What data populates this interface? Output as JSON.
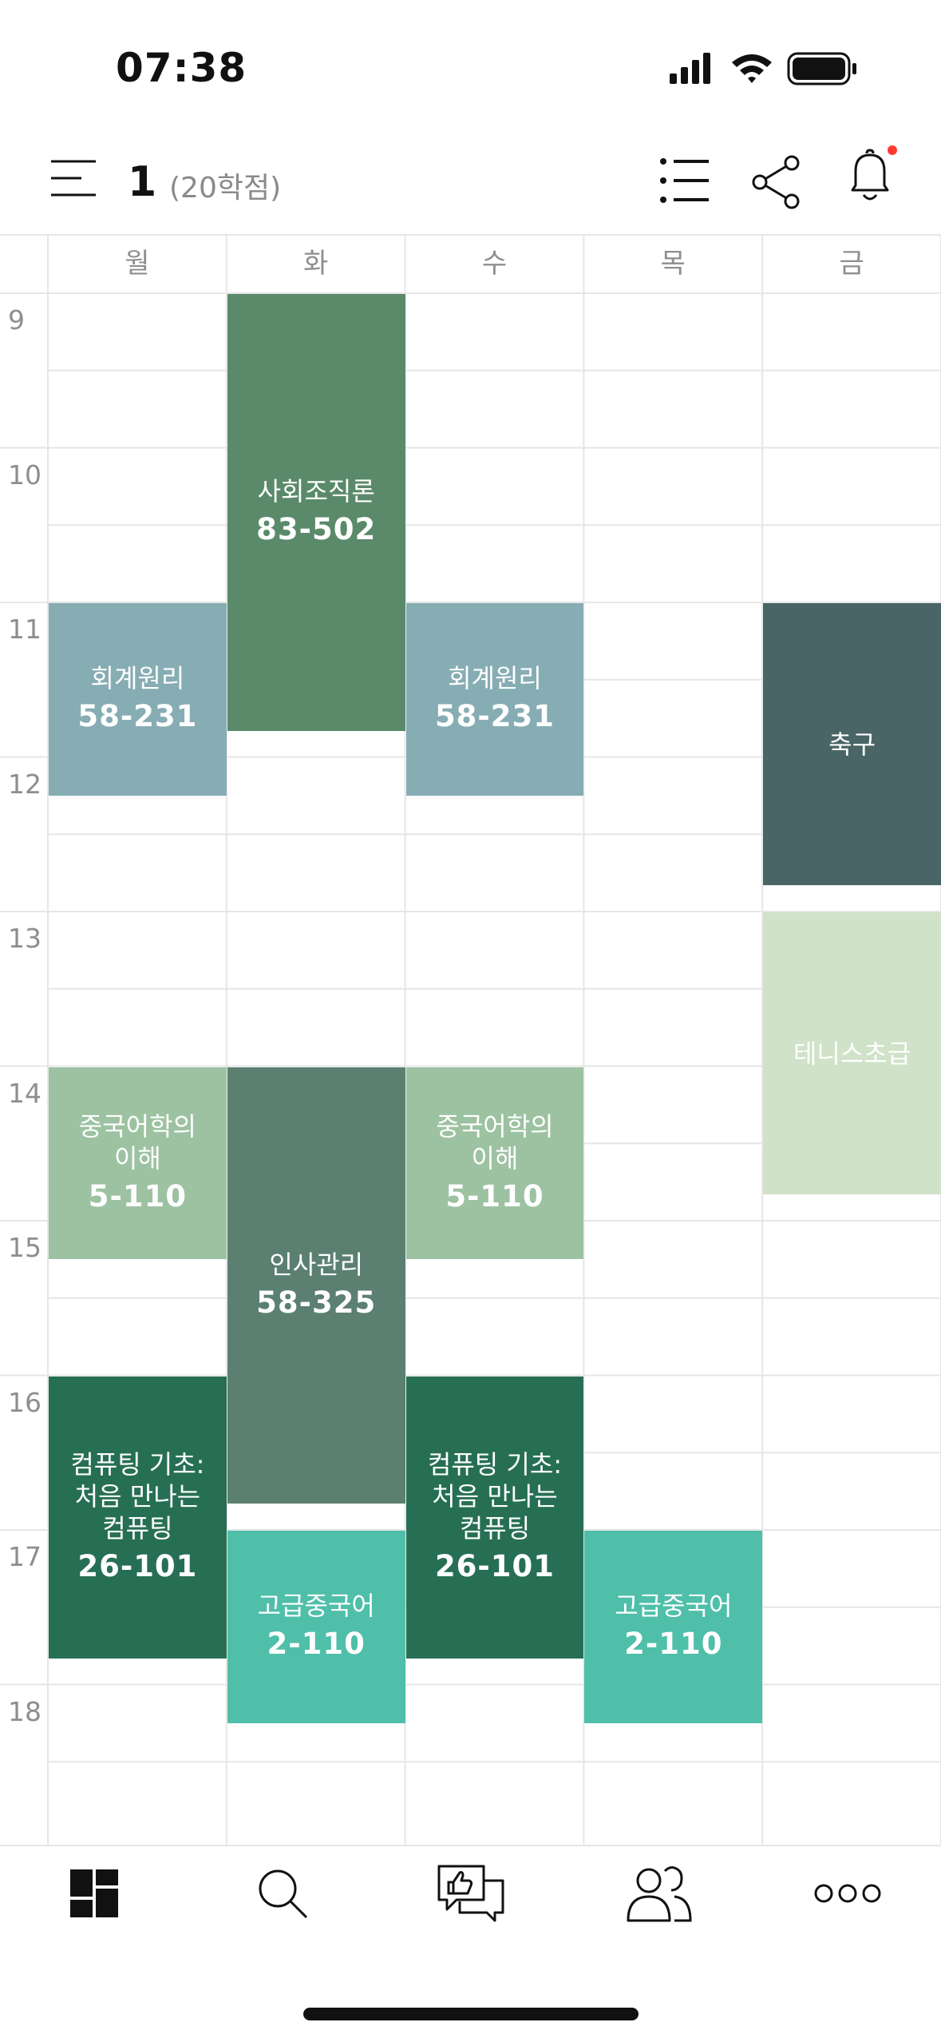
{
  "status_bar": {
    "time": "07:38"
  },
  "header": {
    "title": "1",
    "credits": "(20학점)"
  },
  "colors": {
    "grid_line": "#e6e6e6",
    "notification_dot": "#ff3b30"
  },
  "timetable": {
    "days": [
      "월",
      "화",
      "수",
      "목",
      "금"
    ],
    "hours": [
      "9",
      "10",
      "11",
      "12",
      "13",
      "14",
      "15",
      "16",
      "17",
      "18"
    ],
    "start_hour": 9,
    "courses": [
      {
        "name": "사회조직론",
        "room": "83-502",
        "day": 1,
        "start": 9.0,
        "end": 11.83,
        "color": "#5a8a6a"
      },
      {
        "name": "회계원리",
        "room": "58-231",
        "day": 0,
        "start": 11.0,
        "end": 12.25,
        "color": "#86adb3"
      },
      {
        "name": "회계원리",
        "room": "58-231",
        "day": 2,
        "start": 11.0,
        "end": 12.25,
        "color": "#86adb3"
      },
      {
        "name": "축구",
        "room": "",
        "day": 4,
        "start": 11.0,
        "end": 12.83,
        "color": "#4a6565"
      },
      {
        "name": "테니스초급",
        "room": "",
        "day": 4,
        "start": 13.0,
        "end": 14.83,
        "color": "#d0e2c8"
      },
      {
        "name": "중국어학의\n이해",
        "room": "5-110",
        "day": 0,
        "start": 14.0,
        "end": 15.25,
        "color": "#9dc2a2"
      },
      {
        "name": "중국어학의\n이해",
        "room": "5-110",
        "day": 2,
        "start": 14.0,
        "end": 15.25,
        "color": "#9dc2a2"
      },
      {
        "name": "인사관리",
        "room": "58-325",
        "day": 1,
        "start": 14.0,
        "end": 16.83,
        "color": "#5b8072"
      },
      {
        "name": "컴퓨팅 기초:\n처음 만나는\n컴퓨팅",
        "room": "26-101",
        "day": 0,
        "start": 16.0,
        "end": 17.83,
        "color": "#276f54"
      },
      {
        "name": "컴퓨팅 기초:\n처음 만나는\n컴퓨팅",
        "room": "26-101",
        "day": 2,
        "start": 16.0,
        "end": 17.83,
        "color": "#276f54"
      },
      {
        "name": "고급중국어",
        "room": "2-110",
        "day": 1,
        "start": 17.0,
        "end": 18.25,
        "color": "#4fbfaa"
      },
      {
        "name": "고급중국어",
        "room": "2-110",
        "day": 3,
        "start": 17.0,
        "end": 18.25,
        "color": "#4fbfaa"
      }
    ]
  },
  "tabbar": {
    "tabs": [
      {
        "icon": "timetable-icon",
        "active": true
      },
      {
        "icon": "search-icon",
        "active": false
      },
      {
        "icon": "review-chat-icon",
        "active": false
      },
      {
        "icon": "friends-icon",
        "active": false
      },
      {
        "icon": "more-icon",
        "active": false
      }
    ]
  }
}
